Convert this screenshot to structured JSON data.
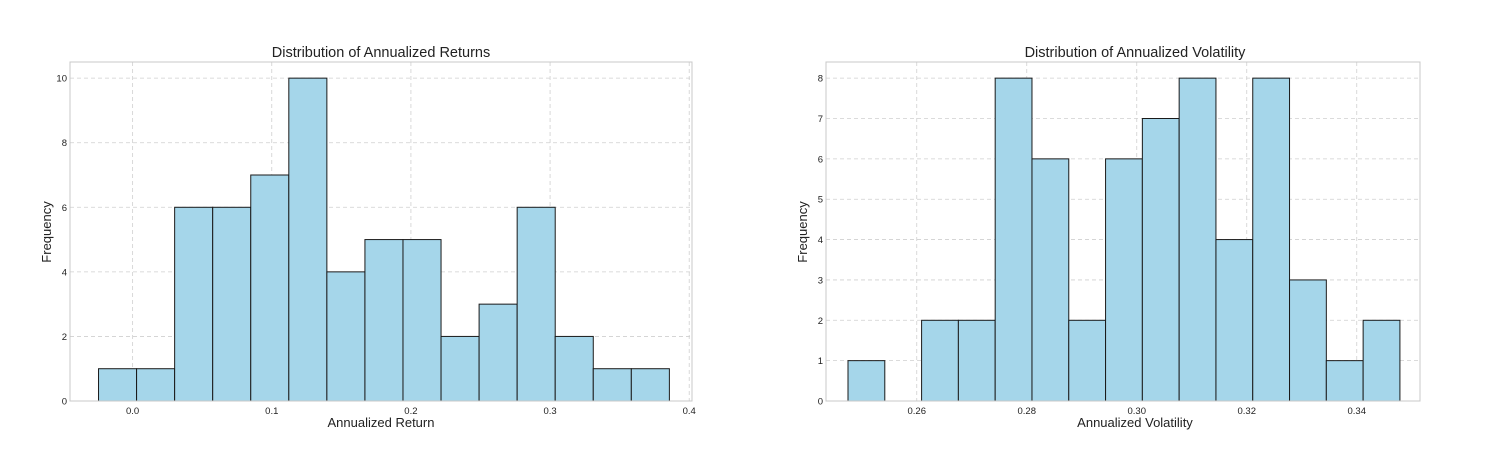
{
  "chart_data": [
    {
      "type": "bar",
      "title": "Distribution of Annualized Returns",
      "xlabel": "Annualized Return",
      "ylabel": "Frequency",
      "bin_start": -0.0245,
      "bin_width": 0.02735,
      "values": [
        1,
        1,
        6,
        6,
        7,
        10,
        4,
        5,
        5,
        2,
        3,
        6,
        2,
        1,
        1
      ],
      "xlim": [
        -0.045,
        0.402
      ],
      "ylim": [
        0,
        10.5
      ],
      "xticks": [
        0.0,
        0.1,
        0.2,
        0.3,
        0.4
      ],
      "xtick_labels": [
        "0.0",
        "0.1",
        "0.2",
        "0.3",
        "0.4"
      ],
      "yticks": [
        0,
        2,
        4,
        6,
        8,
        10
      ],
      "ytick_labels": [
        "0",
        "2",
        "4",
        "6",
        "8",
        "10"
      ],
      "color": "#a5d6ea",
      "edgecolor": "#1a1a1a",
      "grid": true
    },
    {
      "type": "bar",
      "title": "Distribution of Annualized Volatility",
      "xlabel": "Annualized Volatility",
      "ylabel": "Frequency",
      "bin_start": 0.2475,
      "bin_width": 0.00669,
      "values": [
        1,
        0,
        2,
        2,
        8,
        6,
        2,
        6,
        7,
        8,
        4,
        8,
        3,
        1,
        2
      ],
      "xlim": [
        0.2435,
        0.3515
      ],
      "ylim": [
        0,
        8.4
      ],
      "xticks": [
        0.26,
        0.28,
        0.3,
        0.32,
        0.34
      ],
      "xtick_labels": [
        "0.26",
        "0.28",
        "0.30",
        "0.32",
        "0.34"
      ],
      "yticks": [
        0,
        1,
        2,
        3,
        4,
        5,
        6,
        7,
        8
      ],
      "ytick_labels": [
        "0",
        "1",
        "2",
        "3",
        "4",
        "5",
        "6",
        "7",
        "8"
      ],
      "color": "#a5d6ea",
      "edgecolor": "#1a1a1a",
      "grid": true
    }
  ]
}
